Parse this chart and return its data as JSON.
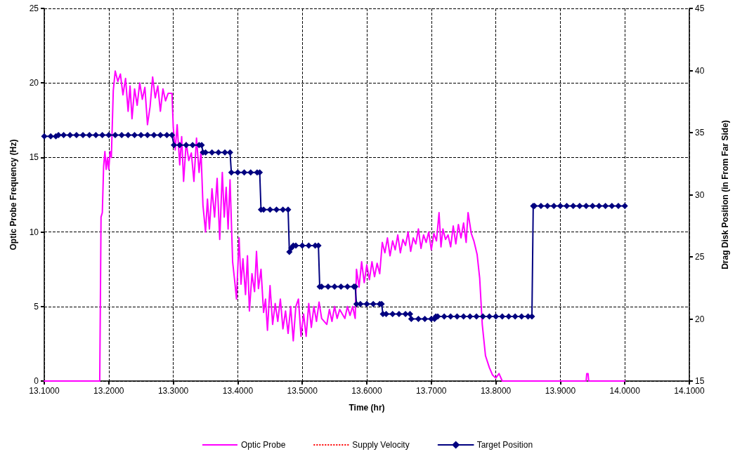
{
  "chart_data": {
    "type": "line",
    "xlabel": "Time (hr)",
    "ylabel": "Optic Probe Frequency (Hz)",
    "y2label": "Drag Disk Position (in From Far Side)",
    "xlim": [
      13.1,
      14.1
    ],
    "xticks": [
      {
        "value": 13.1,
        "label": "13.1000"
      },
      {
        "value": 13.2,
        "label": "13.2000"
      },
      {
        "value": 13.3,
        "label": "13.3000"
      },
      {
        "value": 13.4,
        "label": "13.4000"
      },
      {
        "value": 13.5,
        "label": "13.5000"
      },
      {
        "value": 13.6,
        "label": "13.6000"
      },
      {
        "value": 13.7,
        "label": "13.7000"
      },
      {
        "value": 13.8,
        "label": "13.8000"
      },
      {
        "value": 13.9,
        "label": "13.9000"
      },
      {
        "value": 14.0,
        "label": "14.0000"
      },
      {
        "value": 14.1,
        "label": "14.1000"
      }
    ],
    "ylim": [
      0,
      25
    ],
    "yticks": [
      0,
      5,
      10,
      15,
      20,
      25
    ],
    "y2lim": [
      15,
      45
    ],
    "y2ticks": [
      15,
      20,
      25,
      30,
      35,
      40,
      45
    ],
    "grid": true,
    "legend": "bottom",
    "series": [
      {
        "name": "Optic Probe",
        "color": "#ff00ff",
        "marker": "none",
        "line_style": "solid",
        "x": [
          13.1,
          13.186,
          13.188,
          13.19,
          13.192,
          13.194,
          13.196,
          13.198,
          13.2,
          13.202,
          13.204,
          13.207,
          13.21,
          13.214,
          13.218,
          13.222,
          13.226,
          13.23,
          13.233,
          13.236,
          13.24,
          13.244,
          13.248,
          13.252,
          13.256,
          13.26,
          13.264,
          13.268,
          13.272,
          13.276,
          13.28,
          13.284,
          13.288,
          13.292,
          13.298,
          13.3,
          13.303,
          13.306,
          13.31,
          13.313,
          13.316,
          13.32,
          13.324,
          13.328,
          13.332,
          13.336,
          13.34,
          13.343,
          13.346,
          13.35,
          13.353,
          13.356,
          13.36,
          13.364,
          13.368,
          13.372,
          13.376,
          13.379,
          13.382,
          13.385,
          13.388,
          13.392,
          13.395,
          13.398,
          13.402,
          13.405,
          13.408,
          13.412,
          13.415,
          13.418,
          13.422,
          13.426,
          13.429,
          13.432,
          13.436,
          13.44,
          13.443,
          13.446,
          13.45,
          13.454,
          13.458,
          13.462,
          13.466,
          13.47,
          13.474,
          13.478,
          13.482,
          13.486,
          13.49,
          13.494,
          13.498,
          13.502,
          13.506,
          13.51,
          13.514,
          13.518,
          13.522,
          13.526,
          13.53,
          13.534,
          13.538,
          13.542,
          13.546,
          13.55,
          13.554,
          13.558,
          13.562,
          13.566,
          13.57,
          13.574,
          13.578,
          13.582,
          13.584,
          13.588,
          13.592,
          13.596,
          13.6,
          13.604,
          13.608,
          13.612,
          13.616,
          13.62,
          13.624,
          13.628,
          13.632,
          13.636,
          13.64,
          13.644,
          13.648,
          13.652,
          13.656,
          13.66,
          13.664,
          13.668,
          13.672,
          13.676,
          13.68,
          13.684,
          13.688,
          13.692,
          13.696,
          13.7,
          13.704,
          13.708,
          13.712,
          13.715,
          13.718,
          13.722,
          13.726,
          13.73,
          13.734,
          13.738,
          13.742,
          13.746,
          13.75,
          13.754,
          13.757,
          13.762,
          13.766,
          13.771,
          13.775,
          13.779,
          13.784,
          13.79,
          13.795,
          13.8,
          13.805,
          13.81,
          13.94,
          13.941,
          13.943,
          13.944,
          14.0
        ],
        "values": [
          0,
          0,
          11.0,
          11.3,
          14.4,
          15.4,
          14.2,
          15.0,
          14.2,
          15.4,
          15.0,
          19.5,
          20.8,
          20.1,
          20.6,
          19.2,
          20.3,
          18.1,
          19.8,
          17.6,
          19.6,
          18.5,
          20.0,
          18.9,
          19.7,
          17.2,
          18.4,
          20.4,
          19.0,
          19.8,
          18.1,
          19.6,
          18.8,
          19.3,
          19.3,
          17.0,
          15.5,
          17.2,
          14.5,
          16.4,
          13.4,
          16.0,
          14.8,
          15.3,
          13.4,
          16.3,
          14.0,
          15.4,
          11.8,
          10.0,
          12.2,
          10.2,
          12.9,
          11.0,
          13.6,
          9.5,
          14.0,
          11.0,
          13.0,
          10.2,
          13.5,
          8.0,
          6.8,
          5.5,
          9.6,
          6.5,
          8.2,
          5.8,
          8.4,
          4.7,
          7.2,
          6.0,
          8.7,
          6.2,
          7.5,
          4.6,
          5.5,
          3.4,
          6.4,
          3.8,
          5.2,
          4.0,
          5.5,
          3.5,
          4.7,
          3.2,
          5.0,
          2.7,
          5.0,
          5.5,
          3.0,
          4.5,
          3.0,
          5.2,
          3.6,
          5.0,
          4.0,
          5.3,
          4.2,
          4.0,
          3.8,
          4.8,
          4.0,
          5.0,
          4.2,
          4.8,
          4.5,
          4.2,
          5.0,
          4.4,
          5.0,
          4.2,
          7.5,
          6.3,
          8.0,
          6.6,
          7.8,
          6.8,
          8.0,
          7.0,
          7.9,
          7.2,
          9.3,
          8.6,
          9.6,
          8.4,
          9.4,
          8.8,
          9.8,
          8.6,
          9.5,
          9.1,
          10.0,
          8.7,
          9.6,
          9.2,
          10.2,
          8.9,
          9.8,
          9.3,
          10.0,
          8.8,
          9.9,
          9.4,
          11.3,
          9.0,
          10.2,
          9.5,
          9.8,
          9.0,
          10.4,
          9.2,
          10.5,
          9.6,
          10.6,
          9.3,
          11.3,
          9.9,
          9.4,
          8.5,
          6.9,
          3.8,
          1.7,
          0.9,
          0.4,
          0.2,
          0.5,
          0,
          0,
          0.5,
          0.5,
          0,
          0
        ]
      },
      {
        "name": "Supply Velocity",
        "color": "#ff0000",
        "marker": "none",
        "line_style": "dotted"
      },
      {
        "name": "Target Position",
        "color": "#000080",
        "marker": "diamond",
        "line_style": "solid",
        "axis": "y2",
        "x": [
          13.1,
          13.11,
          13.118,
          13.122,
          13.13,
          13.14,
          13.15,
          13.16,
          13.17,
          13.18,
          13.19,
          13.2,
          13.21,
          13.22,
          13.23,
          13.24,
          13.25,
          13.26,
          13.27,
          13.28,
          13.29,
          13.298,
          13.301,
          13.31,
          13.32,
          13.33,
          13.34,
          13.344,
          13.346,
          13.35,
          13.36,
          13.37,
          13.38,
          13.388,
          13.39,
          13.4,
          13.41,
          13.42,
          13.43,
          13.434,
          13.436,
          13.44,
          13.45,
          13.46,
          13.47,
          13.478,
          13.48,
          13.483,
          13.486,
          13.49,
          13.5,
          13.51,
          13.52,
          13.525,
          13.527,
          13.53,
          13.54,
          13.55,
          13.56,
          13.57,
          13.58,
          13.582,
          13.584,
          13.59,
          13.6,
          13.61,
          13.62,
          13.623,
          13.625,
          13.63,
          13.64,
          13.65,
          13.66,
          13.667,
          13.669,
          13.68,
          13.69,
          13.7,
          13.705,
          13.707,
          13.71,
          13.72,
          13.73,
          13.74,
          13.75,
          13.76,
          13.77,
          13.78,
          13.79,
          13.8,
          13.81,
          13.82,
          13.83,
          13.84,
          13.85,
          13.856,
          13.858,
          13.86,
          13.87,
          13.88,
          13.89,
          13.9,
          13.91,
          13.92,
          13.93,
          13.94,
          13.95,
          13.96,
          13.97,
          13.98,
          13.99,
          14.0
        ],
        "values": [
          34.7,
          34.7,
          34.7,
          34.8,
          34.8,
          34.8,
          34.8,
          34.8,
          34.8,
          34.8,
          34.8,
          34.8,
          34.8,
          34.8,
          34.8,
          34.8,
          34.8,
          34.8,
          34.8,
          34.8,
          34.8,
          34.8,
          34.0,
          34.0,
          34.0,
          34.0,
          34.0,
          34.0,
          33.4,
          33.4,
          33.4,
          33.4,
          33.4,
          33.4,
          31.8,
          31.8,
          31.8,
          31.8,
          31.8,
          31.8,
          28.8,
          28.8,
          28.8,
          28.8,
          28.8,
          28.8,
          25.4,
          25.7,
          25.9,
          25.9,
          25.9,
          25.9,
          25.9,
          25.9,
          22.6,
          22.6,
          22.6,
          22.6,
          22.6,
          22.6,
          22.6,
          22.6,
          21.2,
          21.2,
          21.2,
          21.2,
          21.2,
          21.2,
          20.4,
          20.4,
          20.4,
          20.4,
          20.4,
          20.4,
          20.0,
          20.0,
          20.0,
          20.0,
          20.0,
          20.2,
          20.2,
          20.2,
          20.2,
          20.2,
          20.2,
          20.2,
          20.2,
          20.2,
          20.2,
          20.2,
          20.2,
          20.2,
          20.2,
          20.2,
          20.2,
          20.2,
          29.1,
          29.1,
          29.1,
          29.1,
          29.1,
          29.1,
          29.1,
          29.1,
          29.1,
          29.1,
          29.1,
          29.1,
          29.1,
          29.1,
          29.1,
          29.1
        ]
      }
    ]
  }
}
